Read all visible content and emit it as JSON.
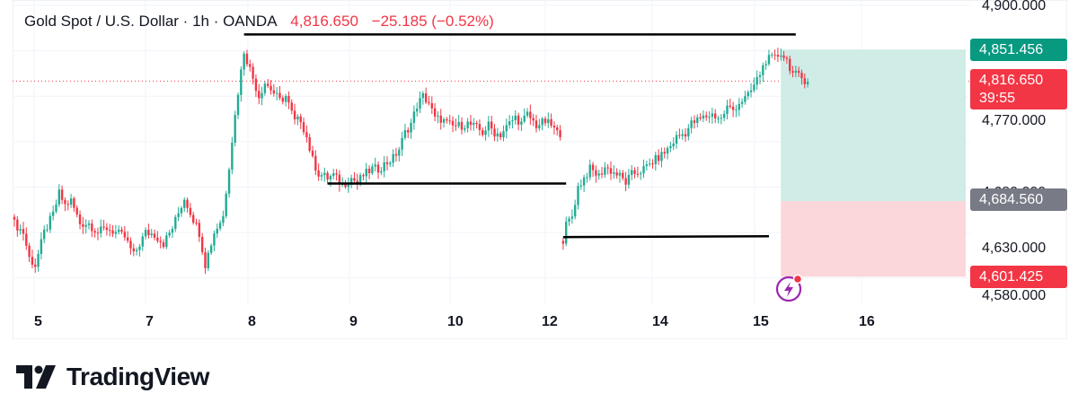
{
  "legend": {
    "symbol": "Gold Spot / U.S. Dollar · 1h · OANDA",
    "last_price": "4,816.650",
    "change": "−25.185 (−0.52%)"
  },
  "price_scale": {
    "top_label": "4,900.000",
    "labels": [
      "4,770.000",
      "4,630.000",
      "4,580.000"
    ],
    "hidden_label": "4,680.000",
    "target_tag": "4,851.456",
    "current_tag": "4,816.650",
    "countdown": "39:55",
    "entry_tag": "4,684.560",
    "stop_tag": "4,601.425"
  },
  "time_scale": [
    "5",
    "7",
    "8",
    "9",
    "10",
    "12",
    "14",
    "15",
    "16"
  ],
  "brand": {
    "name": "TradingView"
  },
  "icons": {
    "alert": "lightning-alert-icon",
    "logo": "tradingview-logo-icon"
  },
  "colors": {
    "up": "#22ab94",
    "down": "#f23645",
    "target_zone": "#cfece6",
    "stop_zone": "#fbd6da",
    "entry_tag": "#787b86",
    "target_tag": "#089981"
  },
  "chart_data": {
    "type": "candlestick",
    "title": "Gold Spot / U.S. Dollar · 1h · OANDA",
    "y_range": [
      4575,
      4905
    ],
    "x_ticks": [
      "5",
      "7",
      "8",
      "9",
      "10",
      "12",
      "14",
      "15",
      "16"
    ],
    "series": [
      {
        "segments": [
          {
            "points": [
              [
                0,
                4660
              ],
              [
                3,
                4650
              ],
              [
                5,
                4622
              ],
              [
                7,
                4614
              ],
              [
                10,
                4650
              ],
              [
                13,
                4670
              ],
              [
                15,
                4693
              ],
              [
                17,
                4680
              ],
              [
                19,
                4685
              ],
              [
                22,
                4660
              ],
              [
                25,
                4660
              ],
              [
                28,
                4650
              ],
              [
                31,
                4655
              ],
              [
                34,
                4650
              ],
              [
                37,
                4645
              ],
              [
                40,
                4625
              ],
              [
                44,
                4650
              ],
              [
                47,
                4648
              ],
              [
                50,
                4638
              ],
              [
                53,
                4655
              ],
              [
                57,
                4688
              ],
              [
                60,
                4665
              ],
              [
                62,
                4650
              ],
              [
                64,
                4615
              ],
              [
                67,
                4650
              ],
              [
                70,
                4668
              ],
              [
                73,
                4752
              ],
              [
                75,
                4805
              ],
              [
                77,
                4850
              ],
              [
                79,
                4830
              ],
              [
                82,
                4800
              ],
              [
                84,
                4815
              ],
              [
                86,
                4808
              ],
              [
                89,
                4795
              ],
              [
                91,
                4800
              ],
              [
                94,
                4772
              ],
              [
                96,
                4775
              ],
              [
                98,
                4755
              ],
              [
                100,
                4730
              ],
              [
                102,
                4715
              ],
              [
                105,
                4710
              ],
              [
                107,
                4713
              ],
              [
                110,
                4702
              ],
              [
                113,
                4710
              ],
              [
                115,
                4705
              ],
              [
                117,
                4713
              ],
              [
                120,
                4720
              ],
              [
                122,
                4720
              ],
              [
                124,
                4725
              ],
              [
                127,
                4732
              ],
              [
                129,
                4742
              ],
              [
                131,
                4760
              ],
              [
                133,
                4770
              ],
              [
                135,
                4790
              ],
              [
                137,
                4800
              ],
              [
                139,
                4793
              ],
              [
                141,
                4775
              ],
              [
                143,
                4775
              ],
              [
                145,
                4770
              ],
              [
                147,
                4767
              ],
              [
                150,
                4768
              ],
              [
                152,
                4770
              ],
              [
                155,
                4765
              ],
              [
                157,
                4760
              ],
              [
                159,
                4768
              ],
              [
                161,
                4760
              ],
              [
                163,
                4758
              ],
              [
                166,
                4770
              ],
              [
                168,
                4777
              ],
              [
                170,
                4770
              ],
              [
                172,
                4780
              ],
              [
                175,
                4768
              ],
              [
                178,
                4772
              ],
              [
                180,
                4768
              ],
              [
                183,
                4755
              ]
            ]
          },
          {
            "points": [
              [
                184,
                4642
              ],
              [
                185,
                4658
              ],
              [
                187,
                4668
              ],
              [
                189,
                4700
              ],
              [
                191,
                4710
              ],
              [
                193,
                4720
              ],
              [
                196,
                4712
              ],
              [
                198,
                4722
              ],
              [
                200,
                4718
              ],
              [
                203,
                4712
              ],
              [
                205,
                4705
              ],
              [
                207,
                4714
              ],
              [
                210,
                4718
              ],
              [
                212,
                4722
              ],
              [
                214,
                4728
              ],
              [
                217,
                4735
              ],
              [
                220,
                4745
              ],
              [
                222,
                4755
              ],
              [
                225,
                4760
              ],
              [
                227,
                4770
              ],
              [
                230,
                4775
              ],
              [
                232,
                4778
              ],
              [
                234,
                4780
              ],
              [
                237,
                4775
              ],
              [
                239,
                4788
              ],
              [
                241,
                4785
              ],
              [
                243,
                4793
              ],
              [
                246,
                4800
              ],
              [
                248,
                4812
              ],
              [
                250,
                4825
              ],
              [
                252,
                4840
              ],
              [
                255,
                4842
              ],
              [
                257,
                4848
              ],
              [
                259,
                4840
              ],
              [
                261,
                4825
              ],
              [
                264,
                4820
              ],
              [
                266,
                4816
              ]
            ]
          }
        ]
      }
    ],
    "annotations": {
      "horizontal_lines": [
        {
          "y": 4868,
          "from": 77,
          "to": 262
        },
        {
          "y": 4704,
          "from": 105,
          "to": 185
        },
        {
          "y": 4645,
          "from": 184,
          "to": 253
        }
      ],
      "position": {
        "from": 257,
        "to": 319,
        "target": 4851.456,
        "entry": 4684.56,
        "stop": 4601.425
      },
      "last_price": 4816.65
    }
  }
}
